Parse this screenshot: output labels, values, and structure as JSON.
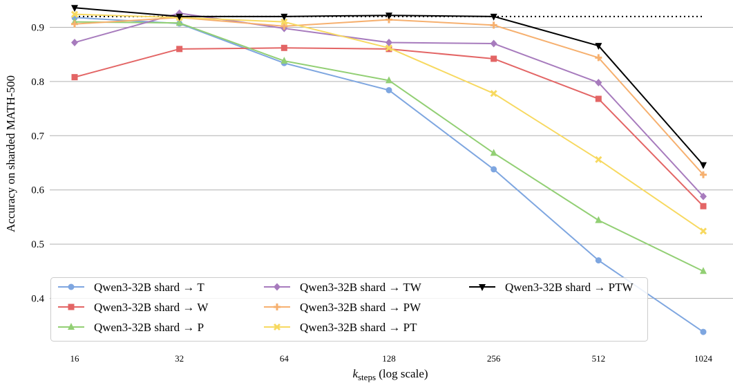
{
  "chart_data": {
    "type": "line",
    "title": "",
    "xlabel_main": "k",
    "xlabel_sub": "steps",
    "xlabel_suffix": " (log scale)",
    "ylabel": "Accuracy on sharded MATH-500",
    "x_scale": "log2",
    "x": [
      16,
      32,
      64,
      128,
      256,
      512,
      1024
    ],
    "xticks": [
      "16",
      "32",
      "64",
      "128",
      "256",
      "512",
      "1024"
    ],
    "yticks": [
      "0.4",
      "0.5",
      "0.6",
      "0.7",
      "0.8",
      "0.9"
    ],
    "ytick_values": [
      0.4,
      0.5,
      0.6,
      0.7,
      0.8,
      0.9
    ],
    "ylim": [
      0.32,
      0.945
    ],
    "grid": "horizontal",
    "legend_position": "lower-left",
    "reference_line": {
      "y": 0.92,
      "style": "dotted",
      "color": "#000000"
    },
    "series": [
      {
        "name": "Qwen3-32B shard → T",
        "marker": "circle",
        "color": "#7ea6e0",
        "values": [
          0.918,
          0.907,
          0.834,
          0.784,
          0.638,
          0.47,
          0.338
        ]
      },
      {
        "name": "Qwen3-32B shard → W",
        "marker": "square",
        "color": "#e36565",
        "values": [
          0.808,
          0.86,
          0.862,
          0.86,
          0.842,
          0.768,
          0.57
        ]
      },
      {
        "name": "Qwen3-32B shard → P",
        "marker": "triangle-up",
        "color": "#92cf74",
        "values": [
          0.91,
          0.908,
          0.838,
          0.802,
          0.668,
          0.544,
          0.45
        ]
      },
      {
        "name": "Qwen3-32B shard → TW",
        "marker": "diamond",
        "color": "#a77bbd",
        "values": [
          0.872,
          0.926,
          0.898,
          0.872,
          0.87,
          0.798,
          0.588
        ]
      },
      {
        "name": "Qwen3-32B shard → PW",
        "marker": "plus",
        "color": "#f6b06f",
        "values": [
          0.906,
          0.918,
          0.902,
          0.914,
          0.904,
          0.844,
          0.628
        ]
      },
      {
        "name": "Qwen3-32B shard → PT",
        "marker": "x",
        "color": "#f7d960",
        "values": [
          0.924,
          0.918,
          0.91,
          0.862,
          0.778,
          0.656,
          0.524
        ]
      },
      {
        "name": "Qwen3-32B shard → PTW",
        "marker": "triangle-down",
        "color": "#000000",
        "values": [
          0.936,
          0.92,
          0.92,
          0.922,
          0.92,
          0.866,
          0.646
        ]
      }
    ]
  }
}
